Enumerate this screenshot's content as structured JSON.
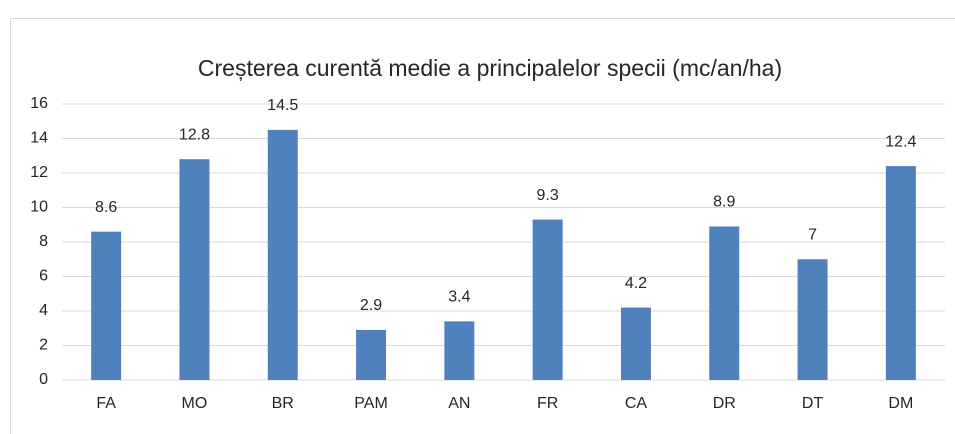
{
  "chart_data": {
    "type": "bar",
    "title": "Creșterea curentă medie a principalelor specii (mc/an/ha)",
    "categories": [
      "FA",
      "MO",
      "BR",
      "PAM",
      "AN",
      "FR",
      "CA",
      "DR",
      "DT",
      "DM"
    ],
    "values": [
      8.6,
      12.8,
      14.5,
      2.9,
      3.4,
      9.3,
      4.2,
      8.9,
      7,
      12.4
    ],
    "color": "#4f81bd",
    "ylim": [
      0,
      16
    ],
    "yticks": [
      0,
      2,
      4,
      6,
      8,
      10,
      12,
      14,
      16
    ],
    "grid": true
  }
}
